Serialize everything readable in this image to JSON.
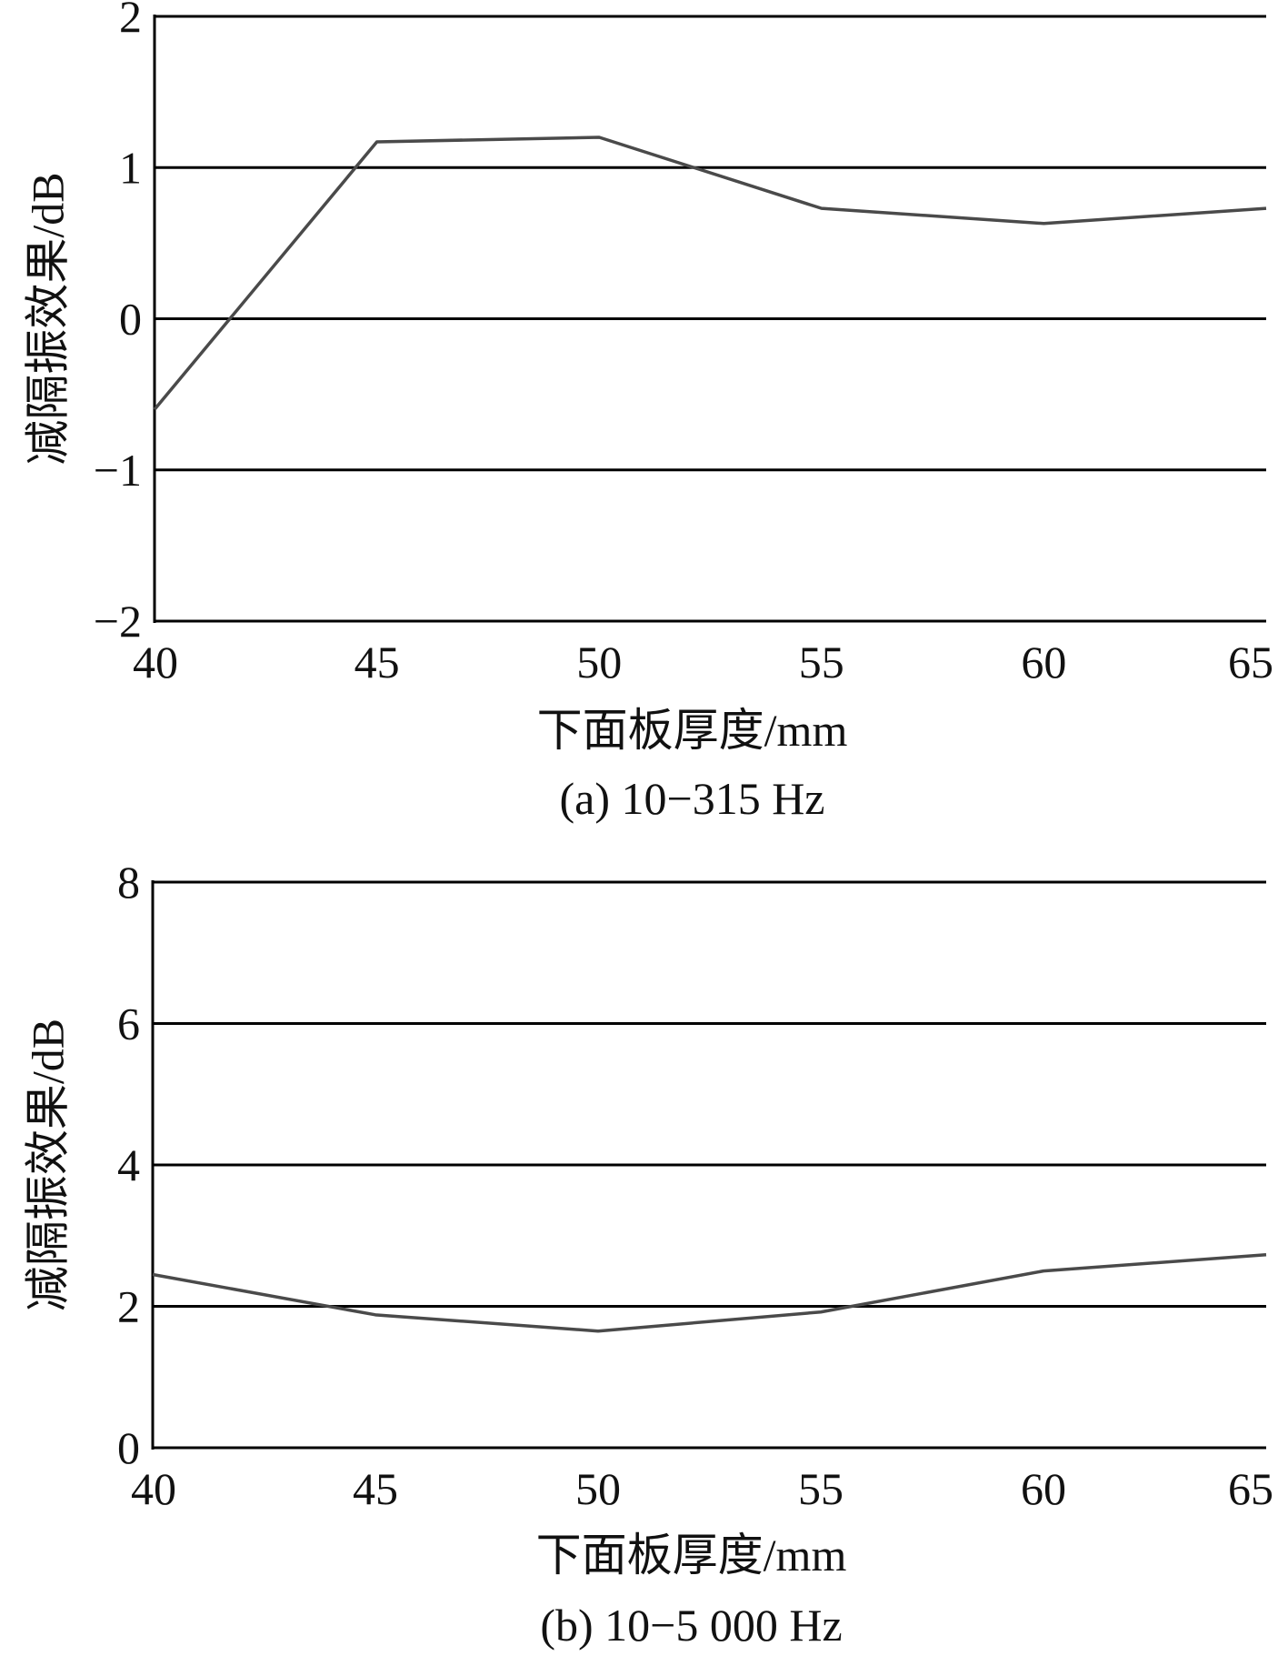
{
  "chart_data": [
    {
      "id": "a",
      "type": "line",
      "caption": "(a) 10−315 Hz",
      "xlabel": "下面板厚度/mm",
      "ylabel": "减隔振效果/dB",
      "x": [
        40,
        45,
        50,
        55,
        60,
        65
      ],
      "x_tick_labels": [
        "40",
        "45",
        "50",
        "55",
        "60",
        "65"
      ],
      "y_ticks": [
        2,
        1,
        0,
        -1,
        -2
      ],
      "y_tick_labels": [
        "2",
        "1",
        "0",
        "−1",
        "−2"
      ],
      "ylim": [
        -2,
        2
      ],
      "xlim": [
        40,
        65
      ],
      "grid": "horizontal",
      "series": [
        {
          "values": [
            -0.6,
            1.17,
            1.2,
            0.73,
            0.63,
            0.73
          ]
        }
      ],
      "colors": {
        "line": "#4a4a4a",
        "grid": "#000000"
      }
    },
    {
      "id": "b",
      "type": "line",
      "caption": "(b) 10−5 000 Hz",
      "xlabel": "下面板厚度/mm",
      "ylabel": "减隔振效果/dB",
      "x": [
        40,
        45,
        50,
        55,
        60,
        65
      ],
      "x_tick_labels": [
        "40",
        "45",
        "50",
        "55",
        "60",
        "65"
      ],
      "y_ticks": [
        8,
        6,
        4,
        2,
        0
      ],
      "y_tick_labels": [
        "8",
        "6",
        "4",
        "2",
        "0"
      ],
      "ylim": [
        0,
        8
      ],
      "xlim": [
        40,
        65
      ],
      "grid": "horizontal",
      "series": [
        {
          "values": [
            2.45,
            1.88,
            1.65,
            1.92,
            2.5,
            2.73
          ]
        }
      ],
      "colors": {
        "line": "#4a4a4a",
        "grid": "#000000"
      }
    }
  ]
}
